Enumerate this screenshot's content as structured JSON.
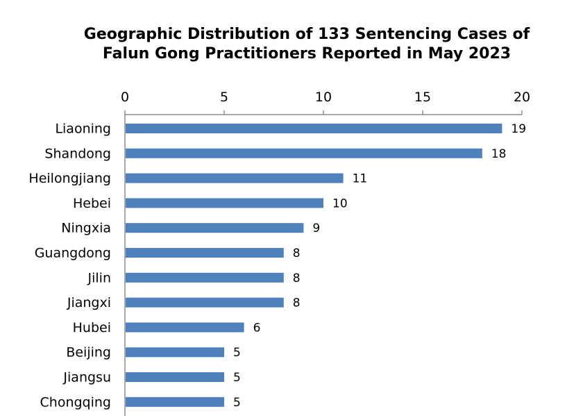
{
  "chart_data": {
    "type": "bar",
    "orientation": "horizontal",
    "title": [
      "Geographic Distribution of 133 Sentencing Cases of",
      "Falun Gong Practitioners Reported in May 2023"
    ],
    "xlabel": "",
    "ylabel": "",
    "xlim": [
      0,
      20
    ],
    "x_ticks": [
      "0",
      "5",
      "10",
      "15",
      "20"
    ],
    "x_axis_position": "top",
    "grid": false,
    "legend": "none",
    "bar_color": "#4f81bd",
    "categories": [
      "Liaoning",
      "Shandong",
      "Heilongjiang",
      "Hebei",
      "Ningxia",
      "Guangdong",
      "Jilin",
      "Jiangxi",
      "Hubei",
      "Beijing",
      "Jiangsu",
      "Chongqing"
    ],
    "values": [
      19,
      18,
      11,
      10,
      9,
      8,
      8,
      8,
      6,
      5,
      5,
      5
    ],
    "data_labels": [
      "19",
      "18",
      "11",
      "10",
      "9",
      "8",
      "8",
      "8",
      "6",
      "5",
      "5",
      "5"
    ]
  }
}
